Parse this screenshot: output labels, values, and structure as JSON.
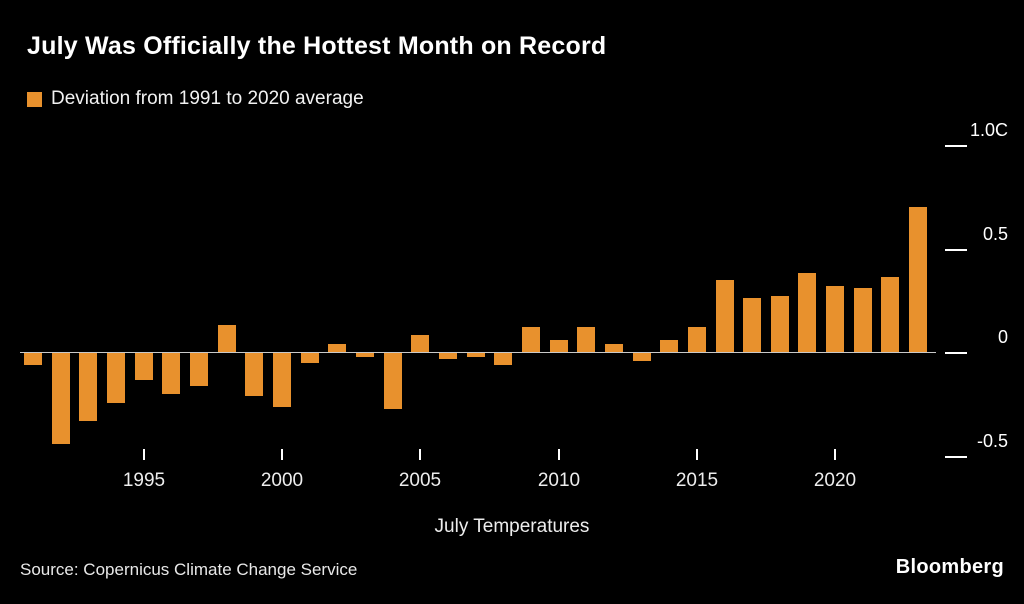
{
  "title": "July Was Officially the Hottest Month on Record",
  "legend": {
    "label": "Deviation from 1991 to 2020 average"
  },
  "xaxis_title": "July Temperatures",
  "source": "Source: Copernicus Climate Change Service",
  "brand": "Bloomberg",
  "colors": {
    "background": "#000000",
    "bar": "#E8912D",
    "axis_line": "#C9C9C9",
    "text": "#FFFFFF"
  },
  "chart_data": {
    "type": "bar",
    "title": "July Was Officially the Hottest Month on Record",
    "legend_label": "Deviation from 1991 to 2020 average",
    "xlabel": "July Temperatures",
    "ylabel": "Deviation from 1991 to 2020 average (C)",
    "ylim": [
      -0.6,
      1.0
    ],
    "grid": false,
    "legend_position": "top-left",
    "y_ticks": [
      {
        "value": 1.0,
        "label": "1.0C"
      },
      {
        "value": 0.5,
        "label": "0.5"
      },
      {
        "value": 0.0,
        "label": "0"
      },
      {
        "value": -0.5,
        "label": "-0.5"
      }
    ],
    "x_tick_years": [
      1995,
      2000,
      2005,
      2010,
      2015,
      2020
    ],
    "x": [
      1991,
      1992,
      1993,
      1994,
      1995,
      1996,
      1997,
      1998,
      1999,
      2000,
      2001,
      2002,
      2003,
      2004,
      2005,
      2006,
      2007,
      2008,
      2009,
      2010,
      2011,
      2012,
      2013,
      2014,
      2015,
      2016,
      2017,
      2018,
      2019,
      2020,
      2021,
      2022,
      2023
    ],
    "values": [
      -0.06,
      -0.44,
      -0.33,
      -0.24,
      -0.13,
      -0.2,
      -0.16,
      0.13,
      -0.21,
      -0.26,
      -0.05,
      0.04,
      -0.02,
      -0.27,
      0.08,
      -0.03,
      -0.02,
      -0.06,
      0.12,
      0.06,
      0.12,
      0.04,
      -0.04,
      0.06,
      0.12,
      0.35,
      0.26,
      0.27,
      0.38,
      0.32,
      0.31,
      0.36,
      0.7
    ]
  }
}
